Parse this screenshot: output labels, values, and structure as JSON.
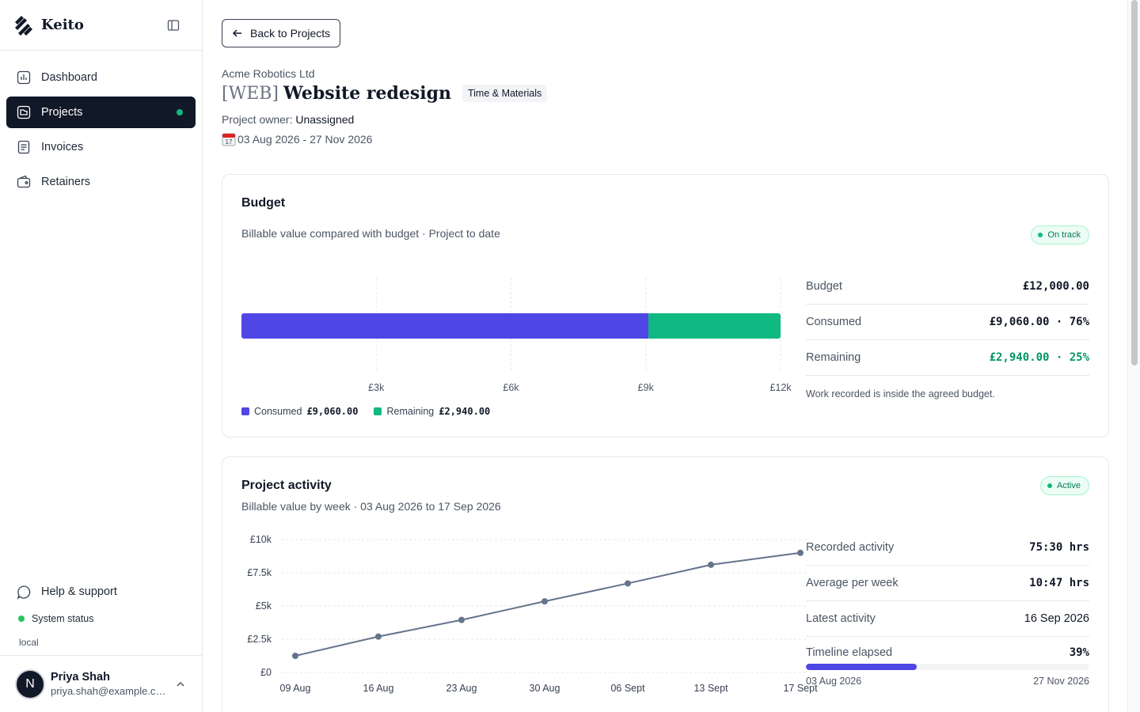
{
  "app": {
    "name": "Keito"
  },
  "sidebar": {
    "items": [
      {
        "label": "Dashboard",
        "icon": "chart-icon",
        "active": false
      },
      {
        "label": "Projects",
        "icon": "folder-icon",
        "active": true
      },
      {
        "label": "Invoices",
        "icon": "document-icon",
        "active": false
      },
      {
        "label": "Retainers",
        "icon": "wallet-icon",
        "active": false
      }
    ],
    "help_label": "Help & support",
    "system_status_label": "System status",
    "environment": "local",
    "user": {
      "initial": "N",
      "name": "Priya Shah",
      "email": "priya.shah@example.com"
    }
  },
  "header": {
    "back_label": "Back to Projects",
    "client": "Acme Robotics Ltd",
    "project_code": "[WEB]",
    "project_name": "Website redesign",
    "billing_type": "Time & Materials",
    "owner_label": "Project owner:",
    "owner_value": "Unassigned",
    "date_range": "03 Aug 2026 - 27 Nov 2026"
  },
  "budget": {
    "title": "Budget",
    "subtitle": "Billable value compared with budget · Project to date",
    "status": "On track",
    "stats": [
      {
        "label": "Budget",
        "value": "£12,000.00"
      },
      {
        "label": "Consumed",
        "value": "£9,060.00 · 76%"
      },
      {
        "label": "Remaining",
        "value": "£2,940.00 · 25%"
      }
    ],
    "note": "Work recorded is inside the agreed budget.",
    "legend": {
      "consumed_label": "Consumed",
      "consumed_value": "£9,060.00",
      "remaining_label": "Remaining",
      "remaining_value": "£2,940.00"
    }
  },
  "activity": {
    "title": "Project activity",
    "subtitle": "Billable value by week · 03 Aug 2026 to 17 Sep 2026",
    "status": "Active",
    "stats": [
      {
        "label": "Recorded activity",
        "value": "75:30 hrs"
      },
      {
        "label": "Average per week",
        "value": "10:47 hrs"
      },
      {
        "label": "Latest activity",
        "value": "16 Sep 2026"
      }
    ],
    "timeline": {
      "label": "Timeline elapsed",
      "value": "39%",
      "fraction": 0.39,
      "start": "03 Aug 2026",
      "end": "27 Nov 2026"
    }
  },
  "colors": {
    "consumed": "#4f46e5",
    "remaining": "#10b981",
    "line": "#64748b",
    "accent": "#111827"
  },
  "chart_data": [
    {
      "type": "bar",
      "orientation": "horizontal-stacked",
      "categories": [
        "Budget"
      ],
      "series": [
        {
          "name": "Consumed",
          "values": [
            9060
          ]
        },
        {
          "name": "Remaining",
          "values": [
            2940
          ]
        }
      ],
      "xticks": [
        "£3k",
        "£6k",
        "£9k",
        "£12k"
      ],
      "xlim": [
        0,
        12000
      ],
      "grid": true,
      "legend": "bottom-left"
    },
    {
      "type": "line",
      "x": [
        "09 Aug",
        "16 Aug",
        "23 Aug",
        "30 Aug",
        "06 Sept",
        "13 Sept",
        "17 Sept"
      ],
      "series": [
        {
          "values": [
            1250,
            2700,
            3950,
            5350,
            6700,
            8100,
            9000
          ]
        }
      ],
      "yticks": [
        "£0",
        "£2.5k",
        "£5k",
        "£7.5k",
        "£10k"
      ],
      "ylim": [
        0,
        10000
      ],
      "grid": true
    }
  ]
}
